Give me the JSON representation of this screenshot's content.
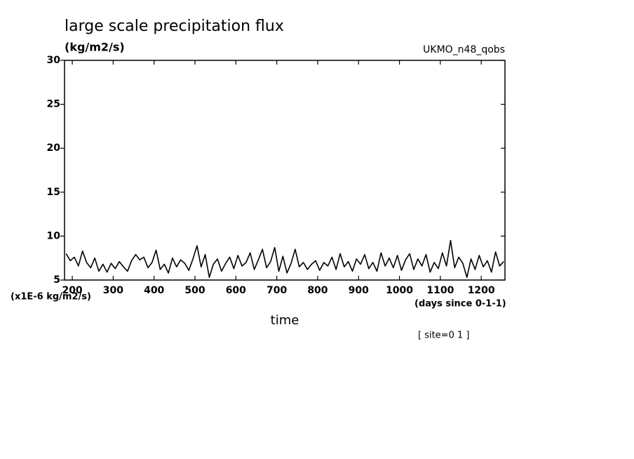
{
  "chart_data": {
    "type": "line",
    "title": "large scale precipitation flux",
    "units": "(kg/m2/s)",
    "dataset": "UKMO_n48_qobs",
    "y_scale_note": "(x1E-6 kg/m2/s)",
    "x_units": "(days since 0-1-1)",
    "xlabel": "time",
    "site_label": "[ site=0 1 ]",
    "x": [
      185,
      195,
      205,
      215,
      225,
      235,
      245,
      255,
      265,
      275,
      285,
      295,
      305,
      315,
      325,
      335,
      345,
      355,
      365,
      375,
      385,
      395,
      405,
      415,
      425,
      435,
      445,
      455,
      465,
      475,
      485,
      495,
      505,
      515,
      525,
      535,
      545,
      555,
      565,
      575,
      585,
      595,
      605,
      615,
      625,
      635,
      645,
      655,
      665,
      675,
      685,
      695,
      705,
      715,
      725,
      735,
      745,
      755,
      765,
      775,
      785,
      795,
      805,
      815,
      825,
      835,
      845,
      855,
      865,
      875,
      885,
      895,
      905,
      915,
      925,
      935,
      945,
      955,
      965,
      975,
      985,
      995,
      1005,
      1015,
      1025,
      1035,
      1045,
      1055,
      1065,
      1075,
      1085,
      1095,
      1105,
      1115,
      1125,
      1135,
      1145,
      1155,
      1165,
      1175,
      1185,
      1195,
      1205,
      1215,
      1225,
      1235,
      1245,
      1255
    ],
    "series": [
      {
        "color": "#000000",
        "values": [
          8.0,
          7.2,
          7.6,
          6.6,
          8.3,
          7.0,
          6.4,
          7.5,
          6.0,
          6.8,
          5.9,
          6.9,
          6.3,
          7.1,
          6.5,
          6.0,
          7.2,
          7.9,
          7.3,
          7.6,
          6.4,
          7.0,
          8.4,
          6.2,
          6.8,
          5.8,
          7.5,
          6.5,
          7.3,
          6.9,
          6.1,
          7.4,
          8.9,
          6.5,
          7.9,
          5.3,
          6.8,
          7.4,
          6.0,
          6.9,
          7.6,
          6.3,
          7.8,
          6.6,
          7.0,
          8.1,
          6.2,
          7.3,
          8.5,
          6.4,
          7.1,
          8.7,
          6.0,
          7.7,
          5.8,
          6.9,
          8.5,
          6.5,
          7.0,
          6.2,
          6.8,
          7.2,
          6.1,
          7.0,
          6.6,
          7.6,
          6.2,
          8.0,
          6.5,
          7.1,
          6.0,
          7.4,
          6.8,
          7.9,
          6.3,
          7.0,
          6.0,
          8.1,
          6.6,
          7.5,
          6.4,
          7.8,
          6.1,
          7.3,
          8.0,
          6.2,
          7.4,
          6.6,
          7.9,
          5.9,
          7.0,
          6.3,
          8.1,
          6.6,
          9.5,
          6.4,
          7.6,
          6.9,
          5.3,
          7.4,
          6.2,
          7.8,
          6.5,
          7.2,
          5.9,
          8.2,
          6.6,
          7.1
        ]
      }
    ],
    "xlim": [
      181,
      1258
    ],
    "ylim": [
      5,
      30
    ],
    "xticks": [
      200,
      300,
      400,
      500,
      600,
      700,
      800,
      900,
      1000,
      1100,
      1200
    ],
    "yticks": [
      5,
      10,
      15,
      20,
      25,
      30
    ]
  }
}
